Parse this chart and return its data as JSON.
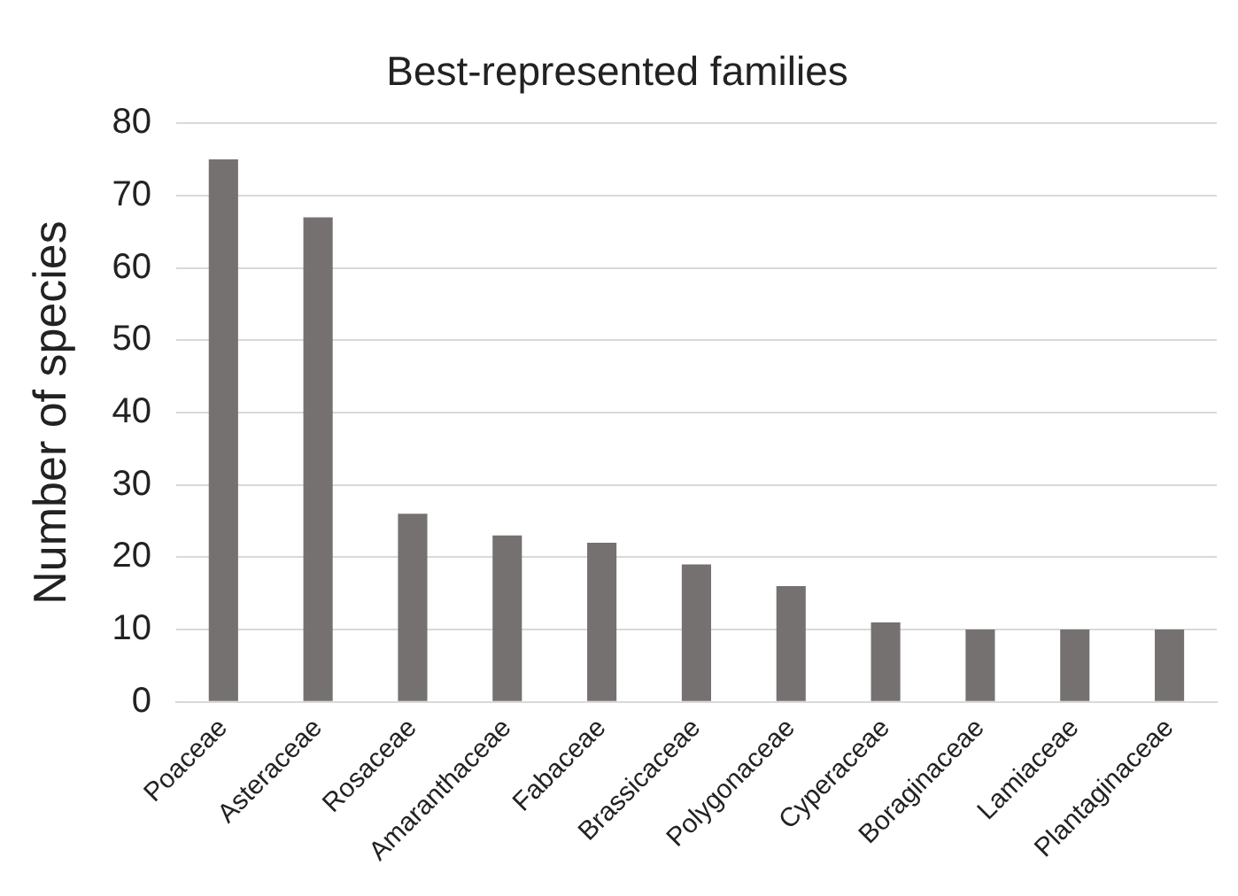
{
  "chart_data": {
    "type": "bar",
    "title": "Best-represented families",
    "ylabel": "Number of species",
    "categories": [
      "Poaceae",
      "Asteraceae",
      "Rosaceae",
      "Amaranthaceae",
      "Fabaceae",
      "Brassicaceae",
      "Polygonaceae",
      "Cyperaceae",
      "Boraginaceae",
      "Lamiaceae",
      "Plantaginaceae"
    ],
    "values": [
      75,
      67,
      26,
      23,
      22,
      19,
      16,
      11,
      10,
      10,
      10
    ],
    "color": "#767171",
    "ylim": [
      0,
      80
    ],
    "yticks": [
      0,
      10,
      20,
      30,
      40,
      50,
      60,
      70,
      80
    ],
    "grid": "y",
    "legend": false
  }
}
